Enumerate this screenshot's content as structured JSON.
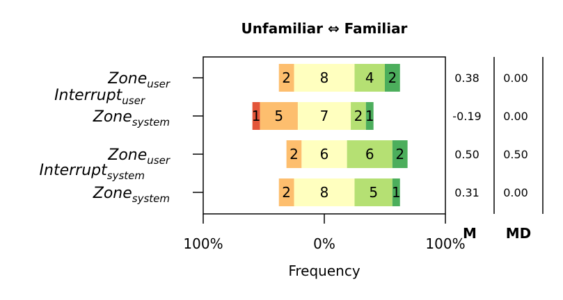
{
  "chart_data": {
    "type": "bar",
    "title": "Unfamiliar ⇔ Familiar",
    "xlabel": "Frequency",
    "x_tick_labels": [
      "100%",
      "0%",
      "100%"
    ],
    "row_labels": [
      {
        "base": "Zone",
        "sub": "user"
      },
      {
        "base": "Zone",
        "sub": "system"
      },
      {
        "base": "Zone",
        "sub": "user"
      },
      {
        "base": "Zone",
        "sub": "system"
      }
    ],
    "group_labels": [
      {
        "base": "Interrupt",
        "sub": "user"
      },
      {
        "base": "Interrupt",
        "sub": "system"
      }
    ],
    "likert_colors": [
      "#e3553a",
      "#fdbe6e",
      "#ffffbf",
      "#b5e073",
      "#4cae5c"
    ],
    "counts": [
      [
        0,
        2,
        8,
        4,
        2
      ],
      [
        1,
        5,
        7,
        2,
        1
      ],
      [
        0,
        2,
        6,
        6,
        2
      ],
      [
        0,
        2,
        8,
        5,
        1
      ]
    ],
    "stats_headers": [
      "M",
      "MD"
    ],
    "M": [
      "0.38",
      "-0.19",
      "0.50",
      "0.31"
    ],
    "MD": [
      "0.00",
      "0.00",
      "0.50",
      "0.00"
    ],
    "grid": false
  }
}
